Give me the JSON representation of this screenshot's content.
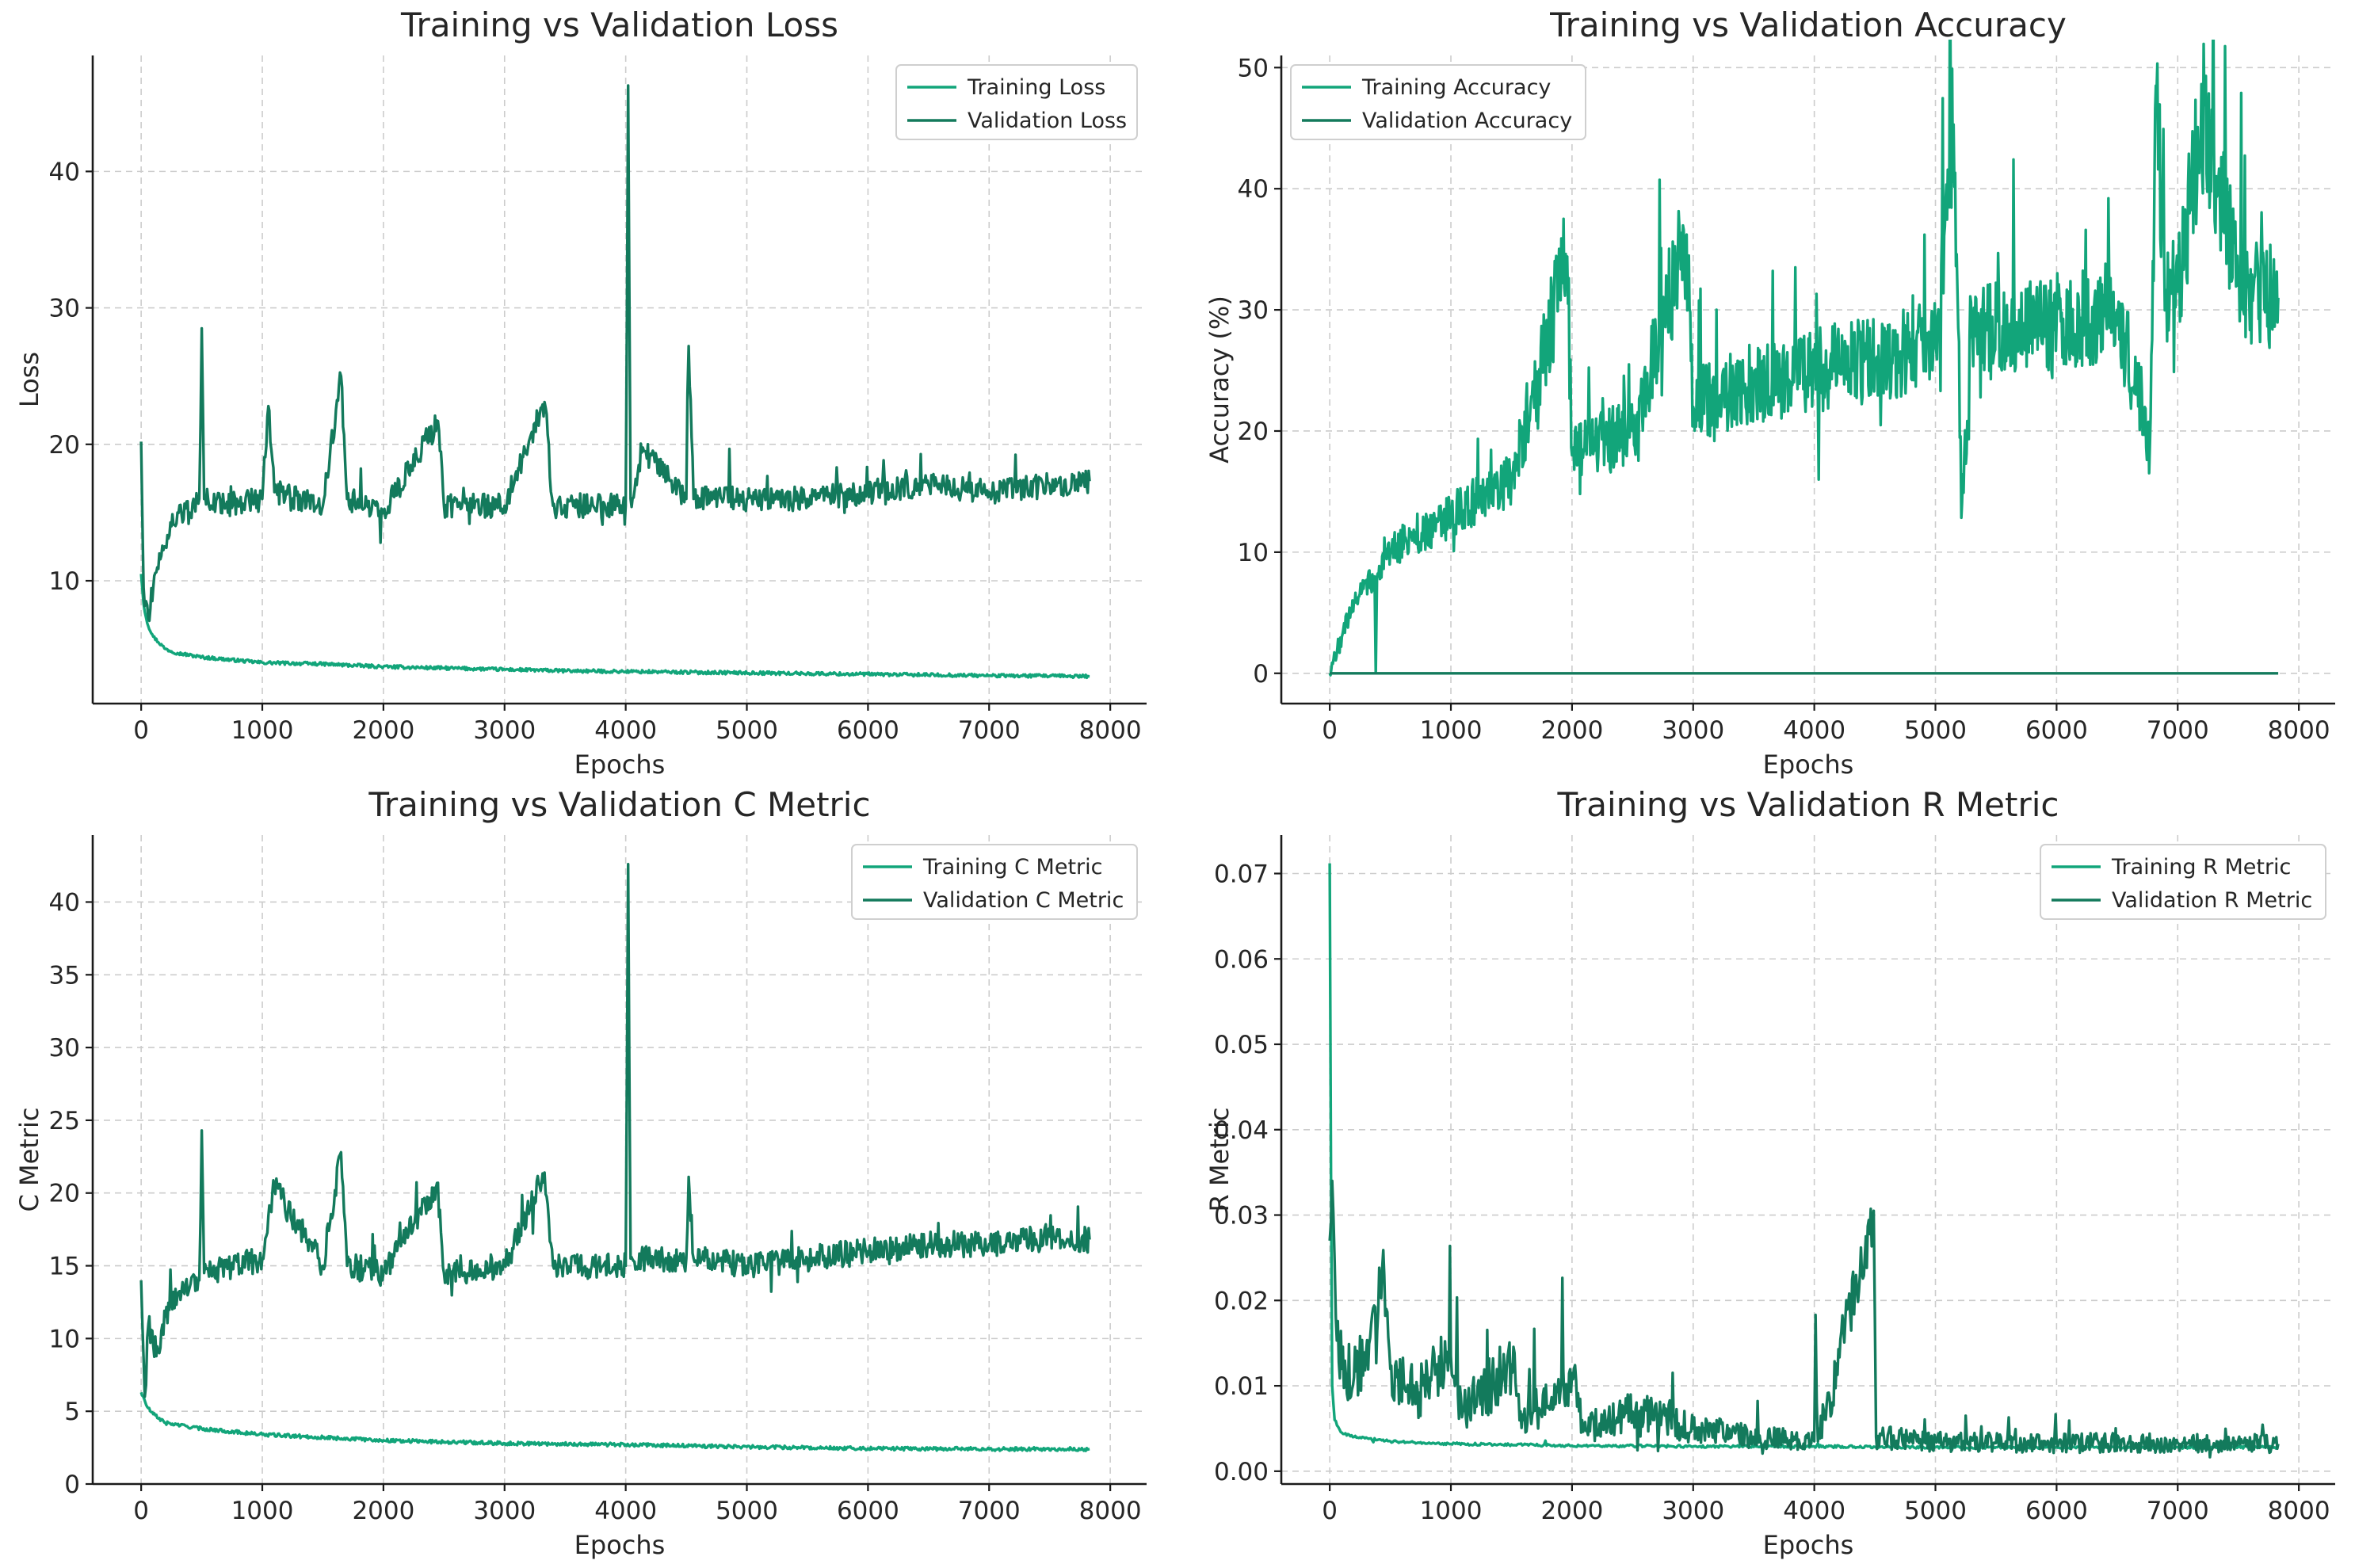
{
  "colors": {
    "training": "#12a57a",
    "validation": "#137a5c"
  },
  "chart_data": [
    {
      "type": "line",
      "title": "Training vs Validation Loss",
      "xlabel": "Epochs",
      "ylabel": "Loss",
      "xlim": [
        -400,
        8300
      ],
      "ylim": [
        1,
        48.5
      ],
      "xticks": [
        0,
        1000,
        2000,
        3000,
        4000,
        5000,
        6000,
        7000,
        8000
      ],
      "yticks": [
        10,
        20,
        30,
        40
      ],
      "ytick_labels": [
        "10",
        "20",
        "30",
        "40"
      ],
      "grid": true,
      "legend": "top-right",
      "series": [
        {
          "name": "Training Loss",
          "color": "#12a57a",
          "points": [
            [
              0,
              10.5
            ],
            [
              20,
              8.3
            ],
            [
              50,
              6.9
            ],
            [
              100,
              5.9
            ],
            [
              200,
              5.0
            ],
            [
              300,
              4.7
            ],
            [
              500,
              4.4
            ],
            [
              1000,
              4.0
            ],
            [
              1500,
              3.9
            ],
            [
              2000,
              3.7
            ],
            [
              2500,
              3.6
            ],
            [
              3000,
              3.5
            ],
            [
              3500,
              3.4
            ],
            [
              4000,
              3.35
            ],
            [
              5000,
              3.25
            ],
            [
              6000,
              3.15
            ],
            [
              7000,
              3.05
            ],
            [
              7830,
              3.0
            ]
          ]
        },
        {
          "name": "Validation Loss",
          "color": "#137a5c",
          "points": [
            [
              0,
              20.2
            ],
            [
              20,
              9.5
            ],
            [
              40,
              8.5
            ],
            [
              60,
              7.2
            ],
            [
              100,
              9.5
            ],
            [
              150,
              12.0
            ],
            [
              200,
              12.5
            ],
            [
              250,
              14.0
            ],
            [
              300,
              15.0
            ],
            [
              400,
              15.0
            ],
            [
              480,
              16.0
            ],
            [
              500,
              28.5
            ],
            [
              520,
              16.0
            ],
            [
              700,
              15.5
            ],
            [
              1000,
              16.0
            ],
            [
              1050,
              22.8
            ],
            [
              1100,
              16.5
            ],
            [
              1500,
              15.5
            ],
            [
              1650,
              25.0
            ],
            [
              1700,
              16.0
            ],
            [
              2000,
              15.0
            ],
            [
              2450,
              21.7
            ],
            [
              2500,
              15.5
            ],
            [
              3000,
              15.5
            ],
            [
              3330,
              23.1
            ],
            [
              3400,
              15.5
            ],
            [
              4000,
              15.5
            ],
            [
              4020,
              46.3
            ],
            [
              4040,
              16.0
            ],
            [
              4150,
              19.5
            ],
            [
              4500,
              16.0
            ],
            [
              4520,
              27.2
            ],
            [
              4560,
              16.0
            ],
            [
              5000,
              16.0
            ],
            [
              5500,
              16.0
            ],
            [
              6000,
              16.5
            ],
            [
              6500,
              17.0
            ],
            [
              7000,
              16.5
            ],
            [
              7500,
              17.0
            ],
            [
              7830,
              17.3
            ]
          ]
        }
      ]
    },
    {
      "type": "line",
      "title": "Training vs Validation Accuracy",
      "xlabel": "Epochs",
      "ylabel": "Accuracy (%)",
      "xlim": [
        -400,
        8300
      ],
      "ylim": [
        -2.5,
        51
      ],
      "xticks": [
        0,
        1000,
        2000,
        3000,
        4000,
        5000,
        6000,
        7000,
        8000
      ],
      "yticks": [
        0,
        10,
        20,
        30,
        40,
        50
      ],
      "ytick_labels": [
        "0",
        "10",
        "20",
        "30",
        "40",
        "50"
      ],
      "grid": true,
      "legend": "top-left",
      "series": [
        {
          "name": "Training Accuracy",
          "color": "#12a57a",
          "points": [
            [
              0,
              0
            ],
            [
              100,
              3
            ],
            [
              200,
              6
            ],
            [
              370,
              8
            ],
            [
              380,
              0
            ],
            [
              390,
              8
            ],
            [
              500,
              10
            ],
            [
              1000,
              13
            ],
            [
              1500,
              16
            ],
            [
              1960,
              34.4
            ],
            [
              2000,
              18
            ],
            [
              2500,
              20
            ],
            [
              2940,
              35.9
            ],
            [
              3000,
              22
            ],
            [
              3500,
              24
            ],
            [
              4000,
              25
            ],
            [
              4500,
              26
            ],
            [
              5000,
              27
            ],
            [
              5150,
              45.3
            ],
            [
              5220,
              14.1
            ],
            [
              5300,
              28
            ],
            [
              6000,
              29
            ],
            [
              6500,
              30
            ],
            [
              6770,
              18.7
            ],
            [
              6820,
              48.5
            ],
            [
              6900,
              31
            ],
            [
              7000,
              31.5
            ],
            [
              7220,
              46.9
            ],
            [
              7500,
              32
            ],
            [
              7830,
              31.0
            ]
          ]
        },
        {
          "name": "Validation Accuracy",
          "color": "#137a5c",
          "points": [
            [
              0,
              0
            ],
            [
              7830,
              0
            ]
          ]
        }
      ]
    },
    {
      "type": "line",
      "title": "Training vs Validation C Metric",
      "xlabel": "Epochs",
      "ylabel": "C Metric",
      "xlim": [
        -400,
        8300
      ],
      "ylim": [
        0,
        44.6
      ],
      "xticks": [
        0,
        1000,
        2000,
        3000,
        4000,
        5000,
        6000,
        7000,
        8000
      ],
      "yticks": [
        0,
        5,
        10,
        15,
        20,
        25,
        30,
        35,
        40
      ],
      "ytick_labels": [
        "0",
        "5",
        "10",
        "15",
        "20",
        "25",
        "30",
        "35",
        "40"
      ],
      "grid": true,
      "legend": "top-right",
      "series": [
        {
          "name": "Training C Metric",
          "color": "#12a57a",
          "points": [
            [
              0,
              6.3
            ],
            [
              50,
              5.3
            ],
            [
              100,
              4.8
            ],
            [
              200,
              4.2
            ],
            [
              500,
              3.8
            ],
            [
              1000,
              3.4
            ],
            [
              1500,
              3.2
            ],
            [
              2000,
              3.0
            ],
            [
              2500,
              2.9
            ],
            [
              3000,
              2.8
            ],
            [
              4000,
              2.7
            ],
            [
              5000,
              2.55
            ],
            [
              6000,
              2.45
            ],
            [
              7000,
              2.4
            ],
            [
              7830,
              2.4
            ]
          ]
        },
        {
          "name": "Validation C Metric",
          "color": "#137a5c",
          "points": [
            [
              0,
              14.0
            ],
            [
              30,
              6.0
            ],
            [
              60,
              11.0
            ],
            [
              100,
              9.5
            ],
            [
              150,
              9.0
            ],
            [
              200,
              11.5
            ],
            [
              300,
              13.0
            ],
            [
              400,
              13.5
            ],
            [
              480,
              14.0
            ],
            [
              500,
              24.3
            ],
            [
              520,
              14.5
            ],
            [
              1000,
              15.5
            ],
            [
              1100,
              20.5
            ],
            [
              1500,
              15.0
            ],
            [
              1650,
              22.8
            ],
            [
              1700,
              15.0
            ],
            [
              2000,
              14.5
            ],
            [
              2450,
              20.7
            ],
            [
              2500,
              14.5
            ],
            [
              3000,
              15.0
            ],
            [
              3330,
              21.4
            ],
            [
              3400,
              15.0
            ],
            [
              4000,
              15.0
            ],
            [
              4020,
              42.6
            ],
            [
              4040,
              15.5
            ],
            [
              4500,
              15.5
            ],
            [
              4520,
              21.1
            ],
            [
              4560,
              15.5
            ],
            [
              5000,
              15.0
            ],
            [
              5500,
              15.5
            ],
            [
              6000,
              16.0
            ],
            [
              6500,
              16.5
            ],
            [
              7000,
              16.5
            ],
            [
              7500,
              17.0
            ],
            [
              7830,
              16.8
            ]
          ]
        }
      ]
    },
    {
      "type": "line",
      "title": "Training vs Validation R Metric",
      "xlabel": "Epochs",
      "ylabel": "R Metric",
      "xlim": [
        -400,
        8300
      ],
      "ylim": [
        -0.0015,
        0.0745
      ],
      "xticks": [
        0,
        1000,
        2000,
        3000,
        4000,
        5000,
        6000,
        7000,
        8000
      ],
      "yticks": [
        0,
        0.01,
        0.02,
        0.03,
        0.04,
        0.05,
        0.06,
        0.07
      ],
      "ytick_labels": [
        "0.00",
        "0.01",
        "0.02",
        "0.03",
        "0.04",
        "0.05",
        "0.06",
        "0.07"
      ],
      "grid": true,
      "legend": "top-right",
      "series": [
        {
          "name": "Training R Metric",
          "color": "#12a57a",
          "points": [
            [
              0,
              0.0712
            ],
            [
              10,
              0.035
            ],
            [
              20,
              0.01
            ],
            [
              40,
              0.006
            ],
            [
              100,
              0.0045
            ],
            [
              200,
              0.004
            ],
            [
              500,
              0.0035
            ],
            [
              1000,
              0.0032
            ],
            [
              2000,
              0.003
            ],
            [
              3000,
              0.0029
            ],
            [
              4000,
              0.0029
            ],
            [
              5000,
              0.0028
            ],
            [
              6000,
              0.0028
            ],
            [
              7000,
              0.0028
            ],
            [
              7830,
              0.0028
            ]
          ]
        },
        {
          "name": "Validation R Metric",
          "color": "#137a5c",
          "points": [
            [
              0,
              0.027
            ],
            [
              20,
              0.034
            ],
            [
              50,
              0.018
            ],
            [
              100,
              0.012
            ],
            [
              200,
              0.011
            ],
            [
              300,
              0.014
            ],
            [
              450,
              0.023
            ],
            [
              500,
              0.012
            ],
            [
              700,
              0.009
            ],
            [
              1000,
              0.0135
            ],
            [
              1100,
              0.007
            ],
            [
              1500,
              0.0125
            ],
            [
              1600,
              0.006
            ],
            [
              2000,
              0.0115
            ],
            [
              2100,
              0.005
            ],
            [
              2500,
              0.007
            ],
            [
              3000,
              0.005
            ],
            [
              3500,
              0.004
            ],
            [
              4000,
              0.0035
            ],
            [
              4010,
              0.0183
            ],
            [
              4030,
              0.0035
            ],
            [
              4490,
              0.0305
            ],
            [
              4510,
              0.004
            ],
            [
              5000,
              0.0035
            ],
            [
              5500,
              0.0033
            ],
            [
              6000,
              0.0033
            ],
            [
              7000,
              0.0033
            ],
            [
              7830,
              0.0032
            ]
          ]
        }
      ]
    }
  ]
}
